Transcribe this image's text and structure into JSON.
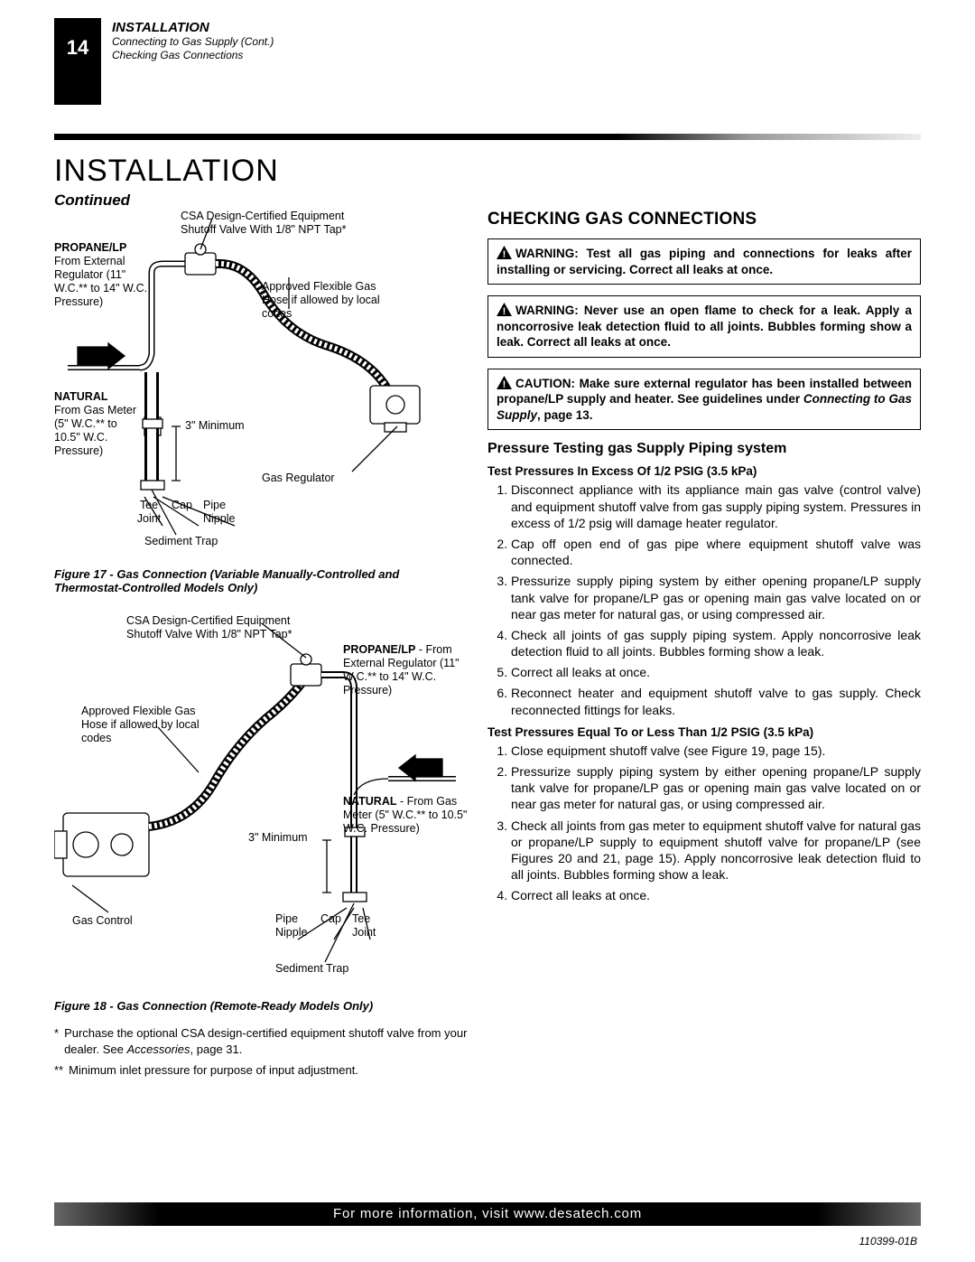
{
  "page_number": "14",
  "header": {
    "section": "INSTALLATION",
    "sub1": "Connecting to Gas Supply (Cont.)",
    "sub2": "Checking Gas Connections"
  },
  "title": "INSTALLATION",
  "continued": "Continued",
  "diagram1": {
    "labels": {
      "csa": "CSA Design-Certified Equipment Shutoff Valve With 1/8\" NPT Tap*",
      "propane_head": "PROPANE/LP",
      "propane_body": "From External Regulator (11\" W.C.** to 14\" W.C. Pressure)",
      "flex": "Approved Flexible Gas Hose if allowed by local codes",
      "natural_head": "NATURAL",
      "natural_body": "From Gas Meter (5\" W.C.** to 10.5\" W.C. Pressure)",
      "three_min": "3\" Minimum",
      "gas_reg": "Gas Regulator",
      "tee": "Tee Joint",
      "cap": "Cap",
      "pipe": "Pipe Nipple",
      "sediment": "Sediment Trap"
    },
    "caption": "Figure 17 - Gas Connection (Variable Manually-Controlled and Thermostat-Controlled Models Only)"
  },
  "diagram2": {
    "labels": {
      "csa": "CSA Design-Certified Equipment Shutoff Valve With 1/8\" NPT Tap*",
      "propane_head": "PROPANE/LP",
      "propane_body": " - From External Regulator (11\" W.C.** to 14\" W.C. Pressure)",
      "flex": "Approved Flexible Gas Hose if allowed by local codes",
      "natural_head": "NATURAL",
      "natural_body": " - From Gas Meter (5\" W.C.** to 10.5\" W.C. Pressure)",
      "three_min": "3\" Minimum",
      "gas_control": "Gas Control",
      "pipe": "Pipe Nipple",
      "cap": "Cap",
      "tee": "Tee Joint",
      "sediment": "Sediment Trap"
    },
    "caption": "Figure 18 - Gas Connection (Remote-Ready Models Only)"
  },
  "footnotes": {
    "star1a": "Purchase the optional CSA design-certified equipment shutoff valve from your dealer. See ",
    "star1b": "Accessories",
    "star1c": ", page 31.",
    "star2": "Minimum inlet pressure for purpose of input adjustment."
  },
  "right": {
    "heading": "CHECKING GAS CONNECTIONS",
    "warn1": "WARNING: Test all gas piping and connections for leaks after installing or servicing. Correct all leaks at once.",
    "warn2": "WARNING: Never use an open flame to check for a leak. Apply a noncorrosive leak detection fluid to all joints. Bubbles forming show a leak. Correct all leaks at once.",
    "caution_a": "CAUTION: Make sure external regulator has been installed between propane/LP supply and heater. See guidelines under ",
    "caution_b": "Connecting to Gas Supply",
    "caution_c": ", page 13.",
    "h3": "Pressure Testing gas Supply Piping system",
    "h4a": "Test Pressures In Excess Of 1/2 PSIG (3.5 kPa)",
    "list_a": [
      "Disconnect appliance with its appliance main gas valve (control valve) and equipment shutoff valve from gas supply piping system. Pressures in excess of 1/2 psig will damage heater regulator.",
      "Cap off open end of gas pipe where equipment shutoff valve was connected.",
      "Pressurize supply piping system by either opening propane/LP supply tank valve for propane/LP gas or opening main gas valve located on or near gas meter for natural gas, or using compressed air.",
      "Check all joints of gas supply piping system. Apply noncorrosive leak detection fluid to all joints. Bubbles forming show a leak.",
      "Correct all leaks at once.",
      "Reconnect heater and equipment shutoff valve to gas supply. Check reconnected fittings for leaks."
    ],
    "h4b": "Test Pressures Equal To or Less Than 1/2 PSIG (3.5 kPa)",
    "list_b": [
      "Close equipment shutoff valve (see Figure 19, page 15).",
      "Pressurize supply piping system by either opening propane/LP supply tank valve for propane/LP gas or opening main gas valve located on or near gas meter for natural gas, or using compressed air.",
      "Check all joints from gas meter to equipment shutoff valve for natural gas or propane/LP supply to equipment shutoff valve for propane/LP (see Figures 20 and 21, page 15). Apply noncorrosive leak detection fluid to all joints. Bubbles forming show a leak.",
      "Correct all leaks at once."
    ]
  },
  "footer": "For more information, visit www.desatech.com",
  "docid": "110399-01B",
  "colors": {
    "black": "#000000",
    "white": "#ffffff",
    "gray": "#777777"
  }
}
